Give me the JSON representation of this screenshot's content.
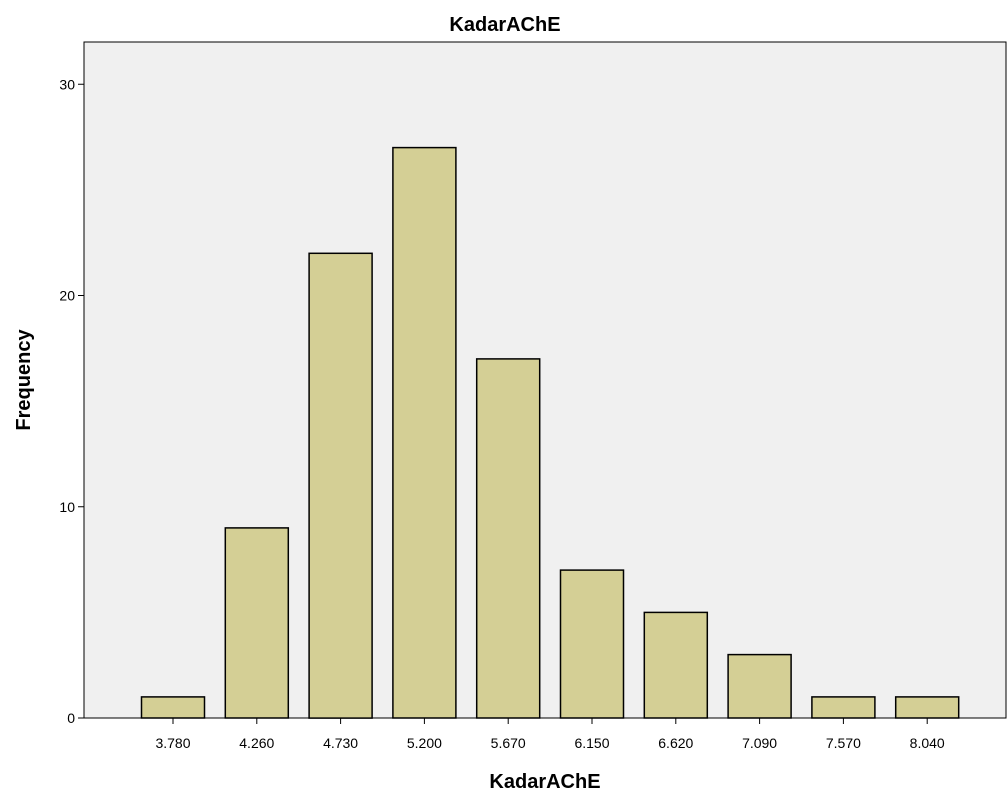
{
  "chart_data": {
    "type": "bar",
    "title": "KadarAChE",
    "xlabel": "KadarAChE",
    "ylabel": "Frequency",
    "categories": [
      "3.780",
      "4.260",
      "4.730",
      "5.200",
      "5.670",
      "6.150",
      "6.620",
      "7.090",
      "7.570",
      "8.040"
    ],
    "values": [
      1,
      9,
      22,
      27,
      17,
      7,
      5,
      3,
      1,
      1
    ],
    "ylim": [
      0,
      32
    ],
    "yticks": [
      0,
      10,
      20,
      30
    ],
    "grid": false,
    "legend": "none",
    "colors": {
      "bar_fill": "#d4cf95",
      "bar_stroke": "#000000",
      "plot_background": "#f0f0f0",
      "page_background": "#ffffff"
    }
  }
}
